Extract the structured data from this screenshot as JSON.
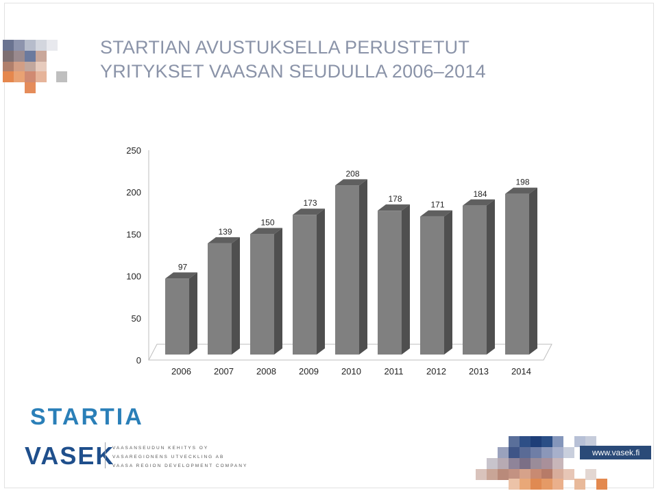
{
  "title": {
    "line1": "STARTIAN AVUSTUKSELLA PERUSTETUT",
    "line2": "YRITYKSET VAASAN SEUDULLA 2006–2014"
  },
  "chart_data": {
    "type": "bar",
    "style": "3d-column",
    "categories": [
      "2006",
      "2007",
      "2008",
      "2009",
      "2010",
      "2011",
      "2012",
      "2013",
      "2014"
    ],
    "values": [
      97,
      139,
      150,
      173,
      208,
      178,
      171,
      184,
      198
    ],
    "ylim": [
      0,
      250
    ],
    "yticks": [
      0,
      50,
      100,
      150,
      200,
      250
    ],
    "grid": false,
    "legend": "none",
    "colors": {
      "bar_front": "#808080",
      "bar_side": "#4f4f4f",
      "bar_top": "#5f5f5f"
    }
  },
  "branding": {
    "startia": "STARTIA",
    "vasek": "VASEK",
    "vasek_sub": [
      "VAASANSEUDUN KEHITYS OY",
      "VASAREGIONENS UTVECKLING AB",
      "VAASA REGION DEVELOPMENT COMPANY"
    ],
    "url": "www.vasek.fi"
  }
}
